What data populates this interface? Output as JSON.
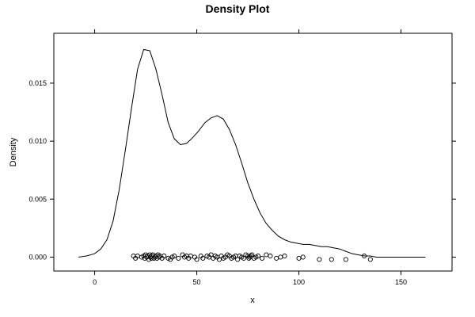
{
  "chart_data": {
    "type": "line",
    "title": "Density Plot",
    "xlabel": "x",
    "ylabel": "Density",
    "xlim": [
      -20,
      175
    ],
    "ylim": [
      -0.0012,
      0.0193
    ],
    "xticks": [
      0,
      50,
      100,
      150
    ],
    "yticks": [
      0.0,
      0.005,
      0.01,
      0.015
    ],
    "xtick_labels": [
      "0",
      "50",
      "100",
      "150"
    ],
    "ytick_labels": [
      "0.000",
      "0.005",
      "0.010",
      "0.015"
    ],
    "grid": false,
    "legend": "none",
    "line_color": "#000000",
    "point_color": "#000000",
    "series": [
      {
        "type": "line",
        "x": [
          -8,
          -4,
          0,
          3,
          6,
          9,
          12,
          15,
          18,
          21,
          24,
          27,
          30,
          33,
          36,
          39,
          42,
          45,
          48,
          51,
          54,
          57,
          60,
          63,
          66,
          69,
          72,
          75,
          78,
          81,
          84,
          87,
          90,
          93,
          96,
          99,
          102,
          105,
          108,
          111,
          114,
          117,
          120,
          123,
          126,
          129,
          132,
          135,
          138,
          141,
          144,
          147,
          150,
          153,
          156,
          159,
          162
        ],
        "y": [
          0.0,
          0.0001,
          0.0003,
          0.0007,
          0.0015,
          0.0031,
          0.0058,
          0.0092,
          0.0128,
          0.0162,
          0.0179,
          0.0178,
          0.0162,
          0.014,
          0.0116,
          0.0102,
          0.0097,
          0.0098,
          0.0103,
          0.0109,
          0.0116,
          0.012,
          0.0122,
          0.0119,
          0.011,
          0.0097,
          0.0081,
          0.0064,
          0.005,
          0.0038,
          0.0029,
          0.0023,
          0.0018,
          0.0015,
          0.0013,
          0.0012,
          0.0011,
          0.0011,
          0.001,
          0.0009,
          0.0009,
          0.0008,
          0.0007,
          0.0005,
          0.0003,
          0.0002,
          0.0001,
          0.0001,
          0.0,
          0.0,
          0.0,
          0.0,
          0.0,
          0.0,
          0.0,
          0.0,
          0.0
        ]
      },
      {
        "type": "scatter",
        "x": [
          19,
          20,
          21,
          23,
          24,
          24.5,
          25,
          25.5,
          26,
          26.5,
          27,
          27.3,
          27.8,
          28,
          28.5,
          29,
          29.5,
          30,
          30.5,
          31,
          31.5,
          32,
          33,
          34,
          36,
          37,
          38,
          39,
          41,
          43,
          44,
          45,
          46,
          47,
          49,
          50,
          52,
          53,
          55,
          56,
          57,
          58,
          59,
          60,
          61,
          62,
          63,
          64,
          65,
          66,
          67,
          68,
          69,
          70,
          71,
          72,
          73,
          74,
          75,
          75.5,
          76,
          76.5,
          77,
          78,
          79,
          80,
          82,
          84,
          86,
          89,
          91,
          93,
          100,
          102,
          110,
          116,
          123,
          132,
          135
        ],
        "y": [
          0.0001,
          -0.0001,
          0.0001,
          0.0,
          0.0001,
          -0.0001,
          0.0002,
          0.0,
          0.0001,
          -0.0002,
          0.0002,
          0.0,
          -0.0001,
          0.0001,
          0.0002,
          -0.0001,
          0.0,
          0.0001,
          -0.0001,
          0.0002,
          0.0,
          0.0001,
          -0.0001,
          0.0001,
          -0.0001,
          -0.0002,
          0.0,
          0.0001,
          -0.0001,
          0.0002,
          0.0,
          0.0001,
          -0.0001,
          0.0001,
          0.0,
          -0.0002,
          0.0001,
          -0.0001,
          0.0001,
          0.0,
          0.0002,
          -0.0001,
          0.0001,
          0.0,
          -0.0002,
          0.0001,
          -0.0001,
          0.0,
          0.0002,
          0.0001,
          -0.0001,
          0.0,
          0.0001,
          -0.0002,
          0.0001,
          0.0,
          -0.0001,
          0.0002,
          0.0001,
          -0.0001,
          0.0,
          0.0001,
          0.0002,
          -0.0001,
          0.0,
          0.0001,
          -0.0001,
          0.0002,
          0.0001,
          -0.0001,
          0.0,
          0.0001,
          -0.0001,
          0.0,
          -0.0002,
          -0.0002,
          -0.0002,
          0.0001,
          -0.0002
        ]
      }
    ]
  }
}
